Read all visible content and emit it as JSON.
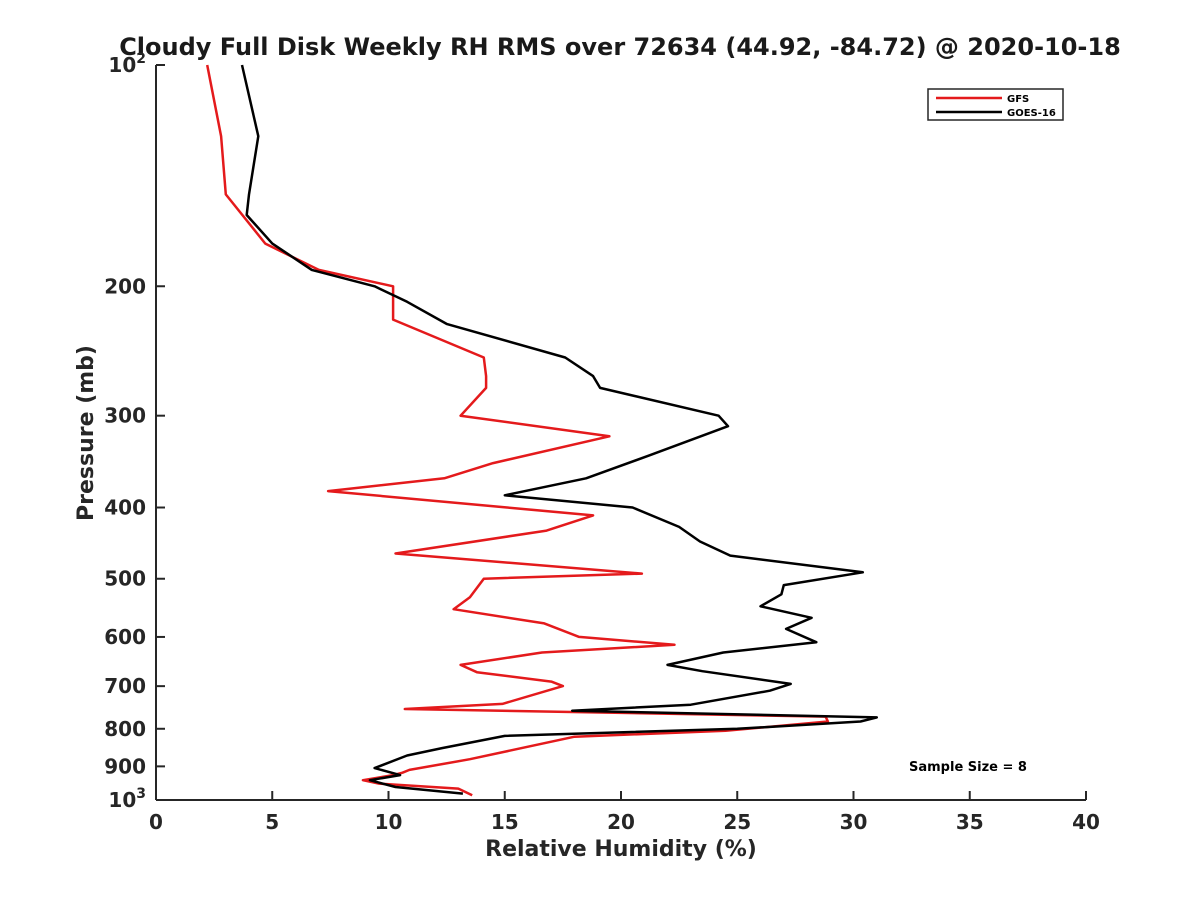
{
  "chart_data": {
    "type": "line",
    "title": "Cloudy Full Disk Weekly RH RMS over 72634 (44.92, -84.72) @ 2020-10-18",
    "xlabel": "Relative Humidity (%)",
    "ylabel": "Pressure (mb)",
    "xlim": [
      0,
      40
    ],
    "ylim": [
      100,
      1000
    ],
    "y_scale": "log",
    "y_reversed": true,
    "x_ticks": [
      "0",
      "5",
      "10",
      "15",
      "20",
      "25",
      "30",
      "35",
      "40"
    ],
    "y_ticks": [
      {
        "value": 100,
        "label": "10",
        "sup": "2"
      },
      {
        "value": 200,
        "label": "200",
        "sup": ""
      },
      {
        "value": 300,
        "label": "300",
        "sup": ""
      },
      {
        "value": 400,
        "label": "400",
        "sup": ""
      },
      {
        "value": 500,
        "label": "500",
        "sup": ""
      },
      {
        "value": 600,
        "label": "600",
        "sup": ""
      },
      {
        "value": 700,
        "label": "700",
        "sup": ""
      },
      {
        "value": 800,
        "label": "800",
        "sup": ""
      },
      {
        "value": 900,
        "label": "900",
        "sup": ""
      },
      {
        "value": 1000,
        "label": "10",
        "sup": "3"
      }
    ],
    "grid": false,
    "legend_position": "top-right",
    "annotation": "Sample Size = 8",
    "series": [
      {
        "name": "GFS",
        "color": "#e41a1c",
        "points": [
          [
            2.2,
            100
          ],
          [
            2.8,
            125
          ],
          [
            3.0,
            150
          ],
          [
            4.7,
            175
          ],
          [
            7.0,
            190
          ],
          [
            10.2,
            200
          ],
          [
            10.2,
            222
          ],
          [
            14.1,
            250
          ],
          [
            14.2,
            265
          ],
          [
            14.2,
            275
          ],
          [
            13.1,
            300
          ],
          [
            19.5,
            320
          ],
          [
            14.5,
            348
          ],
          [
            12.4,
            365
          ],
          [
            7.4,
            380
          ],
          [
            15.1,
            400
          ],
          [
            18.8,
            410
          ],
          [
            16.8,
            430
          ],
          [
            10.3,
            462
          ],
          [
            20.9,
            492
          ],
          [
            14.1,
            500
          ],
          [
            13.5,
            530
          ],
          [
            12.8,
            550
          ],
          [
            16.7,
            575
          ],
          [
            18.2,
            600
          ],
          [
            22.3,
            615
          ],
          [
            16.6,
            630
          ],
          [
            13.1,
            655
          ],
          [
            13.8,
            670
          ],
          [
            17.0,
            690
          ],
          [
            17.5,
            700
          ],
          [
            14.9,
            740
          ],
          [
            10.7,
            752
          ],
          [
            28.8,
            770
          ],
          [
            28.9,
            782
          ],
          [
            24.5,
            805
          ],
          [
            18.0,
            820
          ],
          [
            13.5,
            880
          ],
          [
            10.9,
            910
          ],
          [
            10.6,
            918
          ],
          [
            10.2,
            925
          ],
          [
            8.9,
            940
          ],
          [
            9.6,
            950
          ],
          [
            13.0,
            965
          ],
          [
            13.6,
            985
          ]
        ]
      },
      {
        "name": "GOES-16",
        "color": "#000000",
        "points": [
          [
            3.7,
            100
          ],
          [
            4.4,
            125
          ],
          [
            4.0,
            150
          ],
          [
            3.9,
            160
          ],
          [
            5.0,
            175
          ],
          [
            6.7,
            190
          ],
          [
            9.4,
            200
          ],
          [
            10.8,
            210
          ],
          [
            12.5,
            225
          ],
          [
            17.6,
            250
          ],
          [
            18.8,
            265
          ],
          [
            19.1,
            275
          ],
          [
            24.2,
            300
          ],
          [
            24.6,
            310
          ],
          [
            21.2,
            340
          ],
          [
            18.5,
            365
          ],
          [
            15.0,
            385
          ],
          [
            20.5,
            400
          ],
          [
            22.5,
            425
          ],
          [
            23.4,
            445
          ],
          [
            24.7,
            465
          ],
          [
            30.4,
            490
          ],
          [
            27.0,
            510
          ],
          [
            26.9,
            525
          ],
          [
            26.0,
            545
          ],
          [
            28.2,
            565
          ],
          [
            27.1,
            585
          ],
          [
            28.4,
            610
          ],
          [
            24.4,
            630
          ],
          [
            22.0,
            655
          ],
          [
            23.5,
            668
          ],
          [
            27.3,
            695
          ],
          [
            26.4,
            710
          ],
          [
            23.0,
            742
          ],
          [
            17.9,
            756
          ],
          [
            31.0,
            772
          ],
          [
            30.3,
            782
          ],
          [
            25.0,
            800
          ],
          [
            15.0,
            818
          ],
          [
            12.3,
            850
          ],
          [
            10.8,
            870
          ],
          [
            9.4,
            905
          ],
          [
            10.5,
            925
          ],
          [
            9.2,
            940
          ],
          [
            10.3,
            960
          ],
          [
            13.2,
            980
          ]
        ]
      }
    ]
  }
}
